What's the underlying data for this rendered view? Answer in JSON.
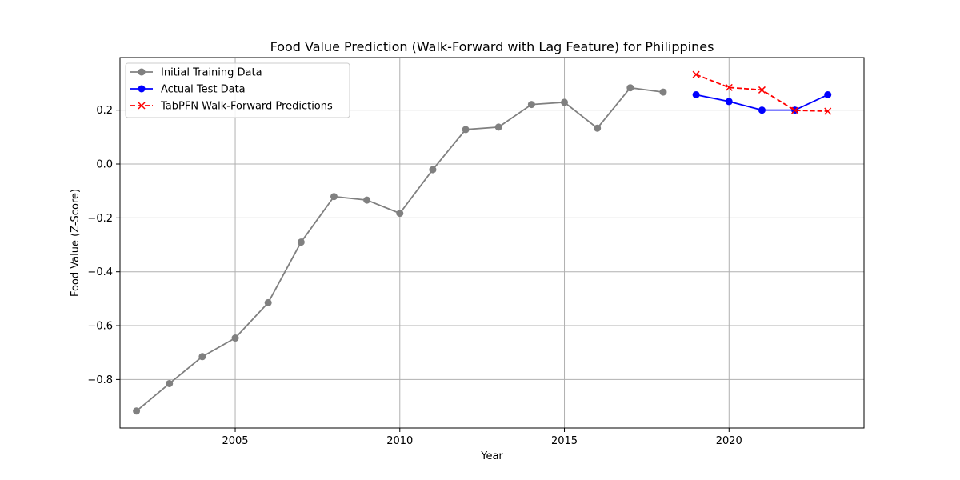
{
  "chart_data": {
    "type": "line",
    "title": "Food Value Prediction (Walk-Forward with Lag Feature) for Philippines",
    "xlabel": "Year",
    "ylabel": "Food Value (Z-Score)",
    "xlim": [
      2001.5,
      2024.1
    ],
    "ylim": [
      -0.98,
      0.395
    ],
    "x_ticks": [
      2005,
      2010,
      2015,
      2020
    ],
    "y_ticks": [
      -0.8,
      -0.6,
      -0.4,
      -0.2,
      0.0,
      0.2
    ],
    "x_tick_labels": [
      "2005",
      "2010",
      "2015",
      "2020"
    ],
    "y_tick_labels": [
      "−0.8",
      "−0.6",
      "−0.4",
      "−0.2",
      "0.0",
      "0.2"
    ],
    "grid": true,
    "legend_position": "upper-left",
    "series": [
      {
        "name": "Initial Training Data",
        "color": "#808080",
        "line_style": "solid",
        "marker": "circle",
        "x": [
          2002,
          2003,
          2004,
          2005,
          2006,
          2007,
          2008,
          2009,
          2010,
          2011,
          2012,
          2013,
          2014,
          2015,
          2016,
          2017,
          2018
        ],
        "values": [
          -0.917,
          -0.815,
          -0.715,
          -0.646,
          -0.515,
          -0.29,
          -0.121,
          -0.134,
          -0.183,
          -0.021,
          0.128,
          0.137,
          0.221,
          0.229,
          0.133,
          0.283,
          0.267
        ]
      },
      {
        "name": "Actual Test Data",
        "color": "#0000ff",
        "line_style": "solid",
        "marker": "circle",
        "x": [
          2019,
          2020,
          2021,
          2022,
          2023
        ],
        "values": [
          0.257,
          0.232,
          0.2,
          0.2,
          0.257
        ]
      },
      {
        "name": "TabPFN Walk-Forward Predictions",
        "color": "#ff0000",
        "line_style": "dashed",
        "marker": "x",
        "x": [
          2019,
          2020,
          2021,
          2022,
          2023
        ],
        "values": [
          0.332,
          0.284,
          0.275,
          0.199,
          0.196
        ]
      }
    ]
  }
}
